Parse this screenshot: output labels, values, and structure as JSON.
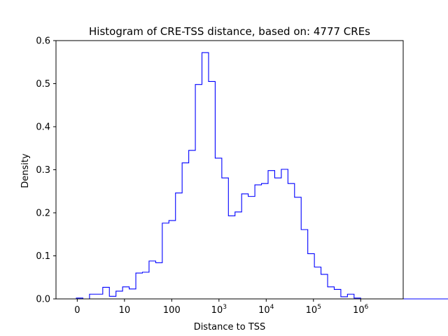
{
  "chart_data": {
    "type": "step-histogram",
    "title": "Histogram of CRE-TSS distance, based on: 4777 CREs",
    "xlabel": "Distance to TSS",
    "ylabel": "Density",
    "x_scale": "symlog",
    "x_ticks": [
      {
        "value": 0,
        "label": "0",
        "base": "0",
        "exp": ""
      },
      {
        "value": 10,
        "label": "10",
        "base": "10",
        "exp": ""
      },
      {
        "value": 100,
        "label": "100",
        "base": "100",
        "exp": ""
      },
      {
        "value": 1000,
        "label": "10^3",
        "base": "10",
        "exp": "3"
      },
      {
        "value": 10000,
        "label": "10^4",
        "base": "10",
        "exp": "4"
      },
      {
        "value": 100000,
        "label": "10^5",
        "base": "10",
        "exp": "5"
      },
      {
        "value": 1000000,
        "label": "10^6",
        "base": "10",
        "exp": "6"
      }
    ],
    "xlim_log": [
      -0.45,
      6.9
    ],
    "ylim": [
      0,
      0.6
    ],
    "y_ticks": [
      "0.0",
      "0.1",
      "0.2",
      "0.3",
      "0.4",
      "0.5",
      "0.6"
    ],
    "color": "#0000ff",
    "bin_width_log": 0.14,
    "bin_start_log": -0.02,
    "densities": [
      0.002,
      0.0,
      0.011,
      0.011,
      0.027,
      0.006,
      0.018,
      0.028,
      0.023,
      0.06,
      0.062,
      0.088,
      0.084,
      0.176,
      0.182,
      0.246,
      0.316,
      0.345,
      0.498,
      0.572,
      0.505,
      0.327,
      0.281,
      0.193,
      0.202,
      0.244,
      0.238,
      0.265,
      0.268,
      0.298,
      0.281,
      0.301,
      0.268,
      0.236,
      0.161,
      0.105,
      0.074,
      0.057,
      0.028,
      0.022,
      0.005,
      0.011,
      0.002,
      0.0,
      0.0,
      0.0,
      0.0,
      0.0,
      0.0,
      0.0,
      0.0,
      0.0,
      0.0,
      0.0,
      0.0,
      0.0,
      0.0,
      0.0,
      0.0,
      0.0,
      0.0,
      0.0,
      0.013
    ]
  }
}
